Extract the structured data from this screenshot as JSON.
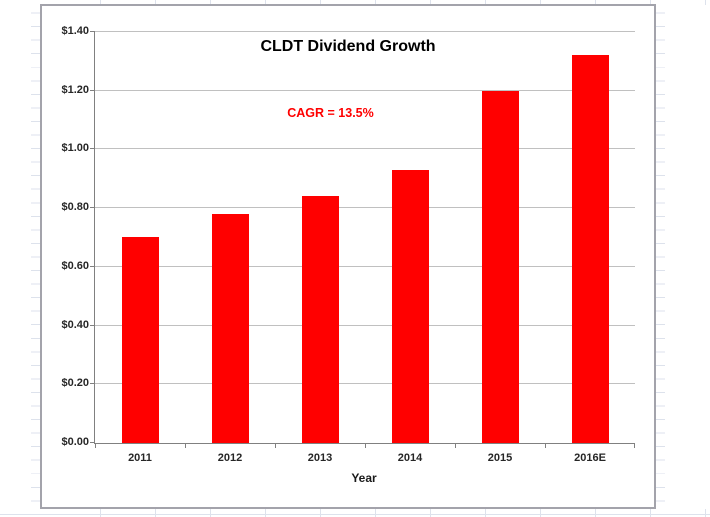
{
  "chart_data": {
    "type": "bar",
    "title": "CLDT Dividend Growth",
    "annotation": "CAGR = 13.5%",
    "categories": [
      "2011",
      "2012",
      "2013",
      "2014",
      "2015",
      "2016E"
    ],
    "values": [
      0.7,
      0.78,
      0.84,
      0.93,
      1.2,
      1.32
    ],
    "xlabel": "Year",
    "ylabel": "",
    "ylim": [
      0,
      1.4
    ],
    "ytick_step": 0.2,
    "ytick_labels": [
      "$0.00",
      "$0.20",
      "$0.40",
      "$0.60",
      "$0.80",
      "$1.00",
      "$1.20",
      "$1.40"
    ],
    "grid": true,
    "legend": false,
    "colors": {
      "bar": "#FF0000",
      "annotation": "#FF0000",
      "title": "#000000",
      "axis_line": "#808080",
      "gridline": "#C0C0C0",
      "tick_label": "#262626",
      "chart_border": "#A3A3AB",
      "spreadsheet_grid": "#DDE2EC"
    }
  }
}
